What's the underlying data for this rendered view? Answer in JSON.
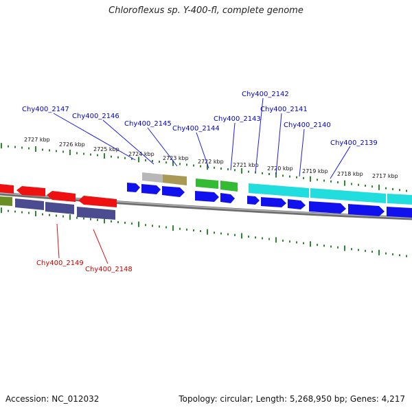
{
  "title": "Chloroflexus sp. Y-400-fl, complete genome",
  "footer": {
    "accession": "Accession: NC_012032",
    "summary": "Topology: circular; Length: 5,268,950 bp; Genes: 4,217"
  },
  "colors": {
    "label_forward": "#0000cc",
    "label_reverse": "#cc0000",
    "tick": "#2a8a2a",
    "backbone": "#888888"
  },
  "ticks": [
    "2727 kbp",
    "2726 kbp",
    "2725 kbp",
    "2724 kbp",
    "2723 kbp",
    "2722 kbp",
    "2721 kbp",
    "2720 kbp",
    "2719 kbp",
    "2718 kbp",
    "2717 kbp"
  ],
  "gene_labels": {
    "forward": [
      "Chy400_2147",
      "Chy400_2146",
      "Chy400_2145",
      "Chy400_2144",
      "Chy400_2143",
      "Chy400_2142",
      "Chy400_2141",
      "Chy400_2140",
      "Chy400_2139"
    ],
    "reverse": [
      "Chy400_2149",
      "Chy400_2148"
    ]
  }
}
